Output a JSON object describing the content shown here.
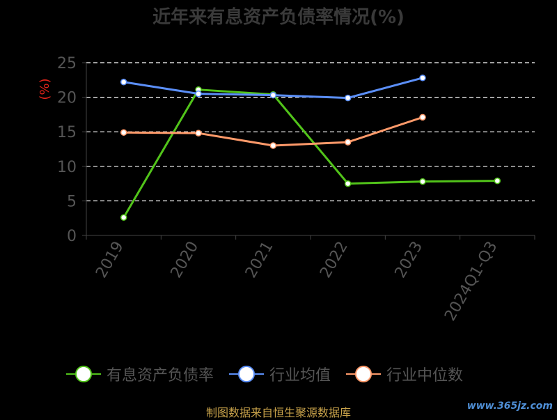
{
  "header": {
    "title": "近年来有息资产负债率情况(%)"
  },
  "chart_data": {
    "type": "line",
    "categories": [
      "2019",
      "2020",
      "2021",
      "2022",
      "2023",
      "2024Q1-Q3"
    ],
    "ylabel": "(%)",
    "ylim": [
      0,
      25
    ],
    "yticks": [
      0,
      5,
      10,
      15,
      20,
      25
    ],
    "grid": true,
    "legend_position": "bottom",
    "series": [
      {
        "name": "有息资产负债率",
        "color": "#52c41a",
        "values": [
          2.6,
          21.1,
          20.4,
          7.5,
          7.8,
          7.9
        ]
      },
      {
        "name": "行业均值",
        "color": "#5b8ff9",
        "values": [
          22.2,
          20.5,
          20.3,
          19.9,
          22.8,
          null
        ]
      },
      {
        "name": "行业中位数",
        "color": "#ff9a6a",
        "values": [
          14.9,
          14.8,
          13.0,
          13.5,
          17.1,
          null
        ]
      }
    ]
  },
  "footer": {
    "source": "制图数据来自恒生聚源数据库",
    "watermark": "www.365jz.com"
  }
}
